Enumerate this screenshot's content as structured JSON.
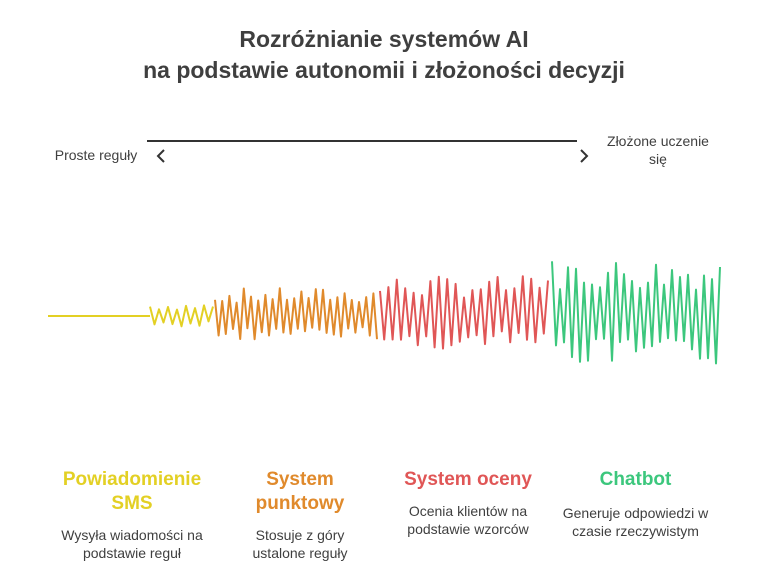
{
  "title_line1": "Rozróżnianie systemów AI",
  "title_line2": "na podstawie autonomii i złożoności decyzji",
  "axis": {
    "left_label": "Proste reguły",
    "right_label": "Złożone uczenie się"
  },
  "colors": {
    "sms": "#e3d024",
    "points": "#e08a2c",
    "scoring": "#e05656",
    "chatbot": "#3cc77d",
    "text": "#3f3f3f"
  },
  "stages": [
    {
      "name": "Powiadomienie SMS",
      "description": "Wysyła wiadomości na podstawie reguł"
    },
    {
      "name": "System punktowy",
      "description": "Stosuje z góry ustalone reguły"
    },
    {
      "name": "System oceny",
      "description": "Ocenia klientów na podstawie wzorców"
    },
    {
      "name": "Chatbot",
      "description": "Generuje odpowiedzi w czasie rzeczywistym"
    }
  ]
}
